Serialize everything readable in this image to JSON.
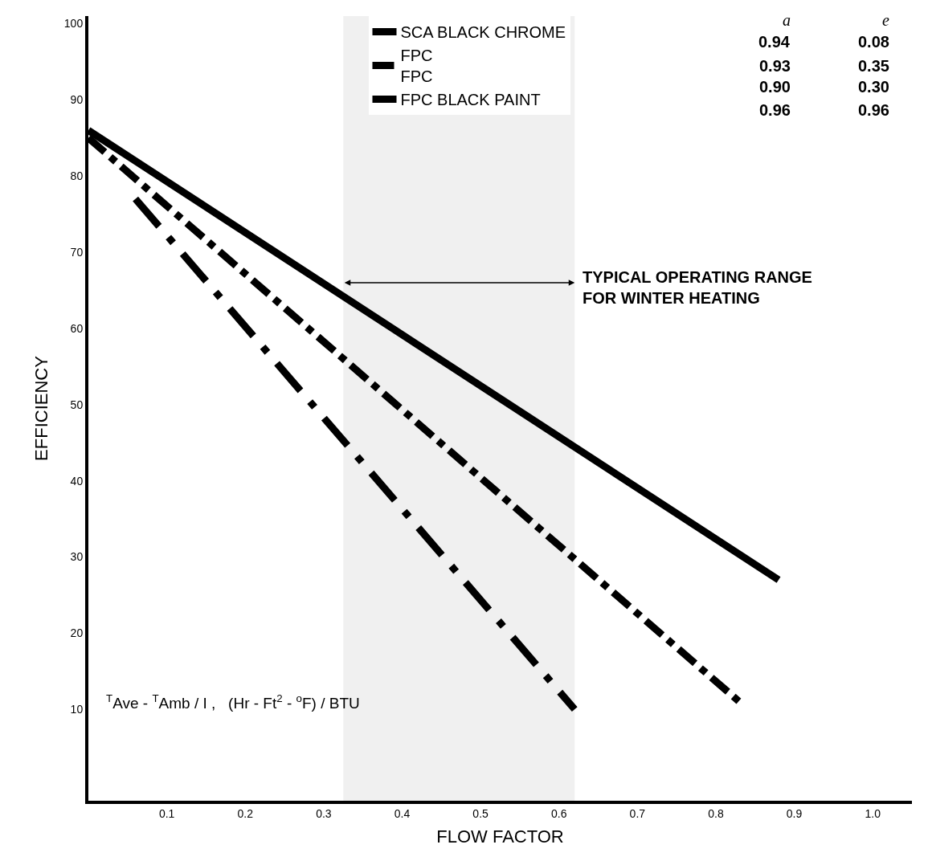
{
  "chart_data": {
    "type": "line",
    "xlabel": "FLOW FACTOR",
    "ylabel": "EFFICIENCY",
    "xlim": [
      0,
      1.05
    ],
    "ylim": [
      -2,
      101
    ],
    "xticks": [
      0.1,
      0.2,
      0.3,
      0.4,
      0.5,
      0.6,
      0.7,
      0.8,
      0.9,
      {
        "value": 1.0,
        "label": "1.0"
      }
    ],
    "yticks": [
      10,
      20,
      30,
      40,
      50,
      60,
      70,
      80,
      90,
      100
    ],
    "grid": false,
    "legend": "top right",
    "marker": "none",
    "series": [
      {
        "name": "SCA BLACK CHROME",
        "color": "#000000",
        "line_style": "solid",
        "x": [
          0,
          0.88
        ],
        "values": [
          86,
          27
        ]
      },
      {
        "name": "FPC\nFPC",
        "color": "#000000",
        "line_style": "dashed",
        "x": [
          0,
          0.83
        ],
        "values": [
          85,
          11
        ]
      },
      {
        "name": "FPC BLACK PAINT",
        "color": "#000000",
        "line_style": "dotted",
        "x": [
          0.06,
          0.62
        ],
        "values": [
          77,
          10
        ]
      }
    ],
    "bands": [
      {
        "axis": "x",
        "from": 0.325,
        "to": 0.62,
        "label": "TYPICAL OPERATING RANGE\nFOR WINTER HEATING"
      }
    ],
    "annotations": [
      "$^{T}$Ave - $^{T}$Amb / I ,   (Hr - Ft$^{2}$ - $^{o}$F) / BTU",
      "a",
      "e",
      "0.94",
      "0.08",
      "0.93",
      "0.35",
      "0.90",
      "0.30",
      "0.96",
      "0.96"
    ]
  }
}
